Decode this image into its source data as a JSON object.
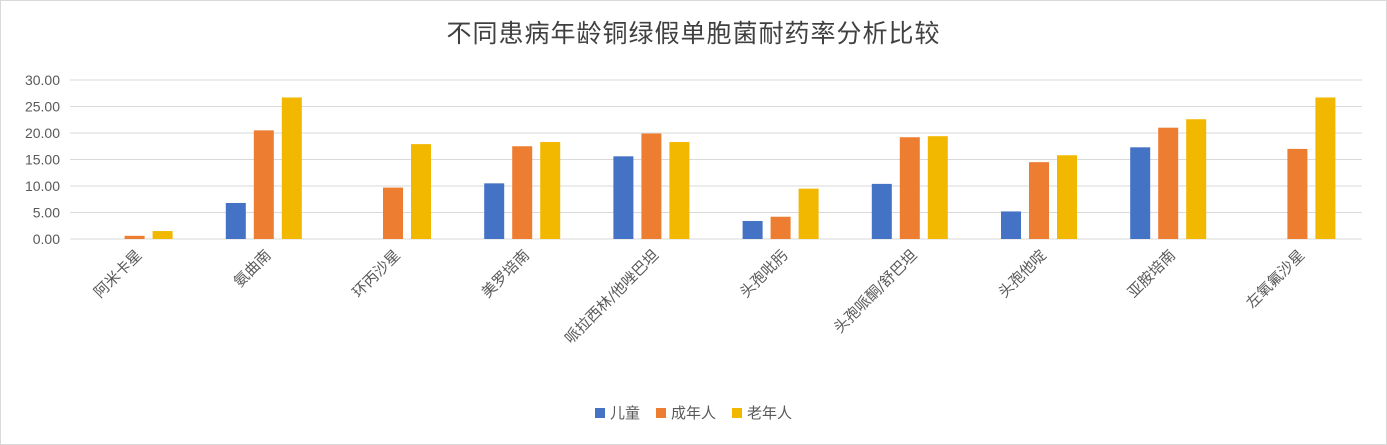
{
  "chart_data": {
    "type": "bar",
    "title": "不同患病年龄铜绿假单胞菌耐药率分析比较",
    "xlabel": "",
    "ylabel": "",
    "ylim": [
      0,
      30
    ],
    "yticks": [
      "0.00",
      "5.00",
      "10.00",
      "15.00",
      "20.00",
      "25.00",
      "30.00"
    ],
    "grid": true,
    "legend_position": "bottom",
    "categories": [
      "阿米卡星",
      "氨曲南",
      "环丙沙星",
      "美罗培南",
      "哌拉西林/他唑巴坦",
      "头孢吡肟",
      "头孢哌酮/舒巴坦",
      "头孢他啶",
      "亚胺培南",
      "左氧氟沙星"
    ],
    "series": [
      {
        "name": "儿童",
        "color": "#4472c4",
        "values": [
          0,
          6.8,
          0,
          10.5,
          15.6,
          3.4,
          10.4,
          5.2,
          17.3,
          0
        ]
      },
      {
        "name": "成年人",
        "color": "#ed7d31",
        "values": [
          0.6,
          20.5,
          9.7,
          17.5,
          19.9,
          4.2,
          19.2,
          14.5,
          21.0,
          17.0
        ]
      },
      {
        "name": "老年人",
        "color": "#f2b800",
        "values": [
          1.5,
          26.7,
          17.9,
          18.3,
          18.3,
          9.5,
          19.4,
          15.8,
          22.6,
          26.7
        ]
      }
    ]
  }
}
